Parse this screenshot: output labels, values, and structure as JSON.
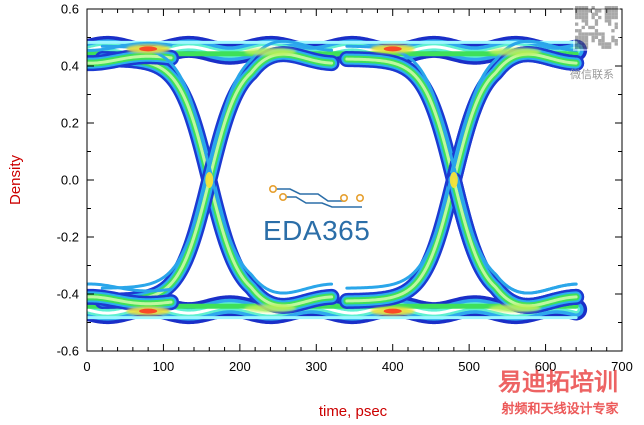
{
  "chart_data": {
    "type": "heatmap",
    "subtype": "eye-diagram-density",
    "title": "",
    "xlabel": "time, psec",
    "ylabel": "Density",
    "xlim": [
      0,
      700
    ],
    "ylim": [
      -0.6,
      0.6
    ],
    "x_ticks": [
      "0",
      "100",
      "200",
      "300",
      "400",
      "500",
      "600",
      "700"
    ],
    "y_ticks": [
      "0.6",
      "0.4",
      "0.2",
      "0.0",
      "-0.2",
      "-0.4",
      "-0.6"
    ],
    "data_extent_x": [
      0,
      640
    ],
    "rails": {
      "high": {
        "center": 0.455,
        "spread": 0.05
      },
      "low": {
        "center": -0.455,
        "spread": 0.05
      }
    },
    "crossings": [
      {
        "x": 160,
        "y": 0.0
      },
      {
        "x": 480,
        "y": 0.0
      }
    ],
    "grid": false,
    "colors": {
      "low_density": "#1f3fd0",
      "mid_density": "#30c8e8",
      "high_density": "#3ee05a",
      "peak_density": "#ff3020",
      "axis_title": "#cc0000"
    }
  },
  "logo": {
    "text": "EDA365",
    "icon": "circuit-trace-icon"
  },
  "watermark_qr": {
    "icon": "qr-code-icon",
    "caption": "微信联系"
  },
  "watermark_brand": {
    "title": "易迪拓培训",
    "subtitle": "射频和天线设计专家"
  }
}
